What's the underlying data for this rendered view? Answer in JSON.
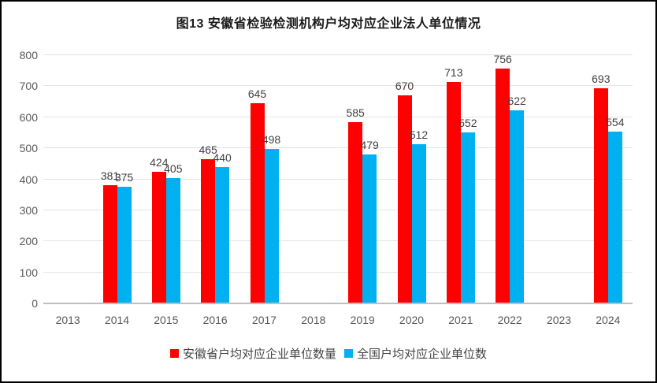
{
  "chart_data": {
    "type": "bar",
    "title": "图13  安徽省检验检测机构户均对应企业法人单位情况",
    "categories": [
      "2013",
      "2014",
      "2015",
      "2016",
      "2017",
      "2018",
      "2019",
      "2020",
      "2021",
      "2022",
      "2023",
      "2024"
    ],
    "series": [
      {
        "name": "安徽省户均对应企业单位数量",
        "color": "#ff0000",
        "values": [
          null,
          381,
          424,
          465,
          645,
          null,
          585,
          670,
          713,
          756,
          null,
          693
        ]
      },
      {
        "name": "全国户均对应企业单位数",
        "color": "#00b0f0",
        "values": [
          null,
          375,
          405,
          440,
          498,
          null,
          479,
          512,
          552,
          622,
          null,
          554
        ]
      }
    ],
    "xlabel": "",
    "ylabel": "",
    "ylim": [
      0,
      800
    ],
    "yticks": [
      0,
      100,
      200,
      300,
      400,
      500,
      600,
      700,
      800
    ],
    "grid": true,
    "legend_position": "bottom",
    "show_data_labels": true,
    "colors": {
      "data_label": "#404040",
      "axis_text": "#595959",
      "gridline": "#e4e4e4",
      "axis_line": "#bfbfbf",
      "title": "#1a1a1a",
      "frame_border": "#000000",
      "background": "#ffffff"
    }
  }
}
